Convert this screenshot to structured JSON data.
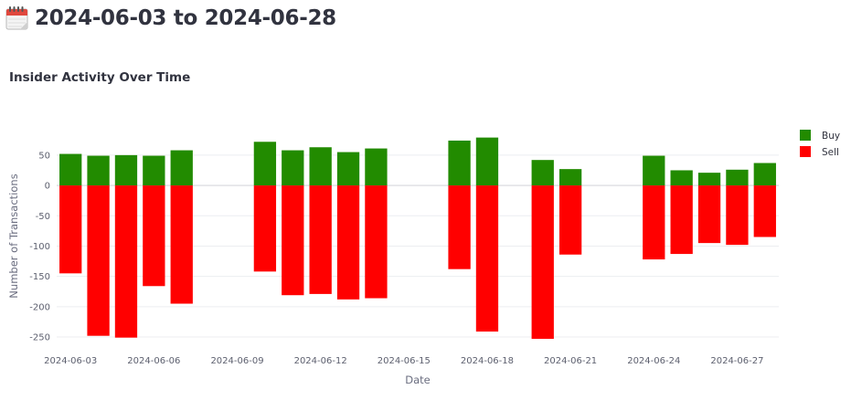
{
  "header": {
    "title": "2024-06-03 to 2024-06-28",
    "icon": "calendar-icon"
  },
  "chart_data": {
    "type": "bar",
    "barmode": "relative",
    "title": "Insider Activity Over Time",
    "xlabel": "Date",
    "ylabel": "Number of Transactions",
    "x": [
      "2024-06-03",
      "2024-06-04",
      "2024-06-05",
      "2024-06-06",
      "2024-06-07",
      "2024-06-10",
      "2024-06-11",
      "2024-06-12",
      "2024-06-13",
      "2024-06-14",
      "2024-06-17",
      "2024-06-18",
      "2024-06-20",
      "2024-06-21",
      "2024-06-24",
      "2024-06-25",
      "2024-06-26",
      "2024-06-27",
      "2024-06-28"
    ],
    "series": [
      {
        "name": "Buy",
        "color": "#228b00",
        "values": [
          52,
          49,
          50,
          49,
          58,
          72,
          58,
          63,
          55,
          61,
          74,
          79,
          42,
          27,
          49,
          25,
          21,
          26,
          37
        ]
      },
      {
        "name": "Sell",
        "color": "#ff0000",
        "values": [
          -145,
          -248,
          -251,
          -166,
          -195,
          -142,
          -181,
          -179,
          -188,
          -186,
          -138,
          -241,
          -253,
          -114,
          -122,
          -113,
          -95,
          -98,
          -85
        ]
      }
    ],
    "ylim": [
      -262,
      95
    ],
    "yticks": [
      50,
      0,
      -50,
      -100,
      -150,
      -200,
      -250
    ],
    "xticks": [
      "2024-06-03",
      "2024-06-06",
      "2024-06-09",
      "2024-06-12",
      "2024-06-15",
      "2024-06-18",
      "2024-06-21",
      "2024-06-24",
      "2024-06-27"
    ],
    "grid": true,
    "legend_position": "top-right"
  }
}
